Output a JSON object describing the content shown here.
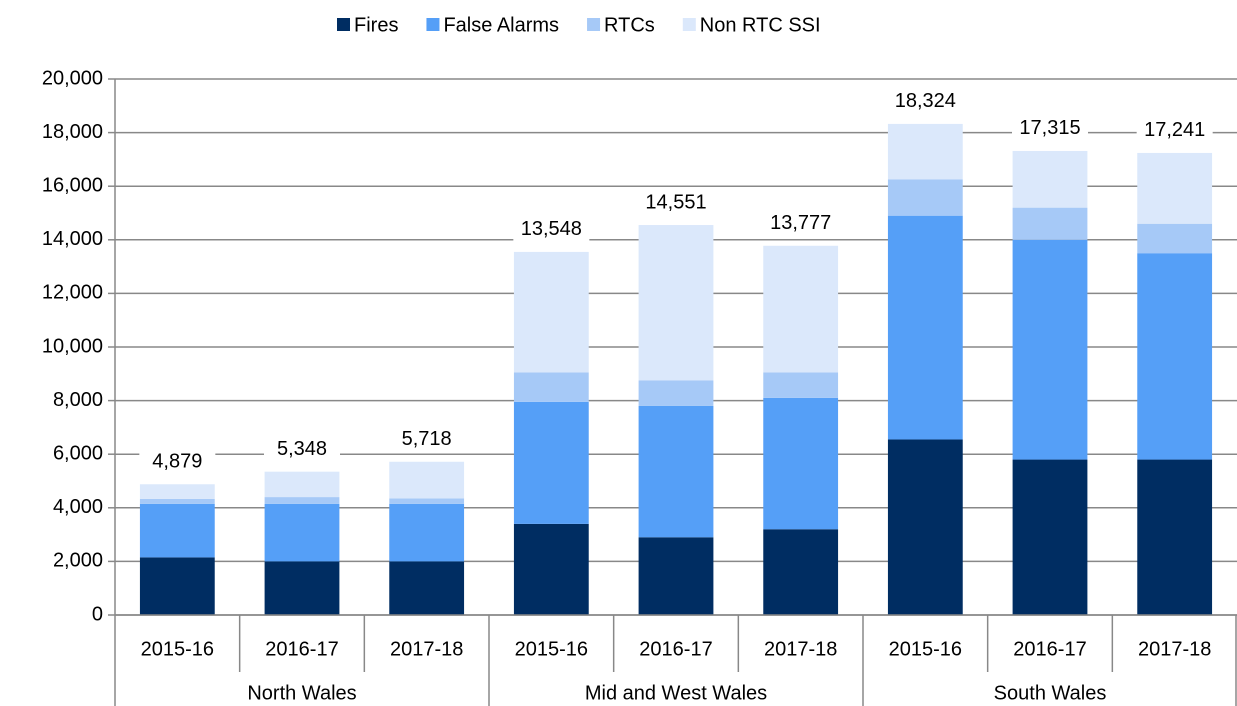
{
  "chart_data": {
    "type": "stacked_bar",
    "categories": [
      "2015-16",
      "2016-17",
      "2017-18",
      "2015-16",
      "2016-17",
      "2017-18",
      "2015-16",
      "2016-17",
      "2017-18"
    ],
    "groups": [
      "North Wales",
      "Mid and West Wales",
      "South Wales"
    ],
    "series": [
      {
        "name": "Fires",
        "color": "#002d62",
        "values": [
          2150,
          2000,
          2000,
          3400,
          2900,
          3200,
          6550,
          5800,
          5800
        ]
      },
      {
        "name": "False Alarms",
        "color": "#559ff7",
        "values": [
          2000,
          2150,
          2150,
          4550,
          4900,
          4900,
          8350,
          8200,
          7700
        ]
      },
      {
        "name": "RTCs",
        "color": "#a6c9f7",
        "values": [
          180,
          250,
          200,
          1100,
          950,
          950,
          1350,
          1200,
          1100
        ]
      },
      {
        "name": "Non RTC SSI",
        "color": "#dbe8fb",
        "values": [
          549,
          948,
          1368,
          4498,
          5801,
          4727,
          2074,
          2115,
          2641
        ]
      }
    ],
    "totals": [
      4879,
      5348,
      5718,
      13548,
      14551,
      13777,
      18324,
      17315,
      17241
    ],
    "total_labels": [
      "4,879",
      "5,348",
      "5,718",
      "13,548",
      "14,551",
      "13,777",
      "18,324",
      "17,315",
      "17,241"
    ],
    "ylim": [
      0,
      20000
    ],
    "yticks": [
      0,
      {
        "value": 2000,
        "label": "2,000"
      },
      {
        "value": 4000,
        "label": "4,000"
      },
      {
        "value": 6000,
        "label": "6,000"
      },
      {
        "value": 8000,
        "label": "8,000"
      },
      {
        "value": 10000,
        "label": "10,000"
      },
      {
        "value": 12000,
        "label": "12,000"
      },
      {
        "value": 14000,
        "label": "14,000"
      },
      {
        "value": 16000,
        "label": "16,000"
      },
      {
        "value": 18000,
        "label": "18,000"
      },
      {
        "value": 20000,
        "label": "20,000"
      }
    ],
    "grid": true,
    "legend": "top"
  }
}
